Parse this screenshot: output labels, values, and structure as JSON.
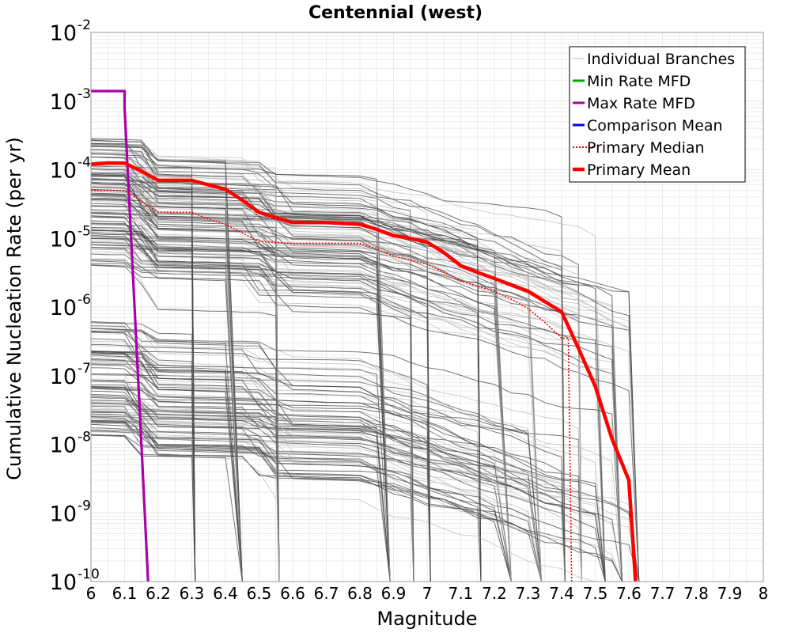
{
  "chart_data": {
    "type": "line",
    "title": "Centennial (west)",
    "xlabel": "Magnitude",
    "ylabel": "Cumulative Nucleation Rate (per yr)",
    "xlim": [
      6.0,
      8.0
    ],
    "ylim": [
      1e-10,
      0.01
    ],
    "yscale": "log",
    "grid": true,
    "legend_position": "top-right",
    "x_ticks": [
      "6",
      "6.1",
      "6.2",
      "6.3",
      "6.4",
      "6.5",
      "6.6",
      "6.7",
      "6.8",
      "6.9",
      "7",
      "7.1",
      "7.2",
      "7.3",
      "7.4",
      "7.5",
      "7.6",
      "7.7",
      "7.8",
      "7.9",
      "8"
    ],
    "y_ticks": [
      {
        "base": "10",
        "exp": "-2",
        "value": 0.01
      },
      {
        "base": "10",
        "exp": "-3",
        "value": 0.001
      },
      {
        "base": "10",
        "exp": "-4",
        "value": 0.0001
      },
      {
        "base": "10",
        "exp": "-5",
        "value": 1e-05
      },
      {
        "base": "10",
        "exp": "-6",
        "value": 1e-06
      },
      {
        "base": "10",
        "exp": "-7",
        "value": 1e-07
      },
      {
        "base": "10",
        "exp": "-8",
        "value": 1e-08
      },
      {
        "base": "10",
        "exp": "-9",
        "value": 1e-09
      },
      {
        "base": "10",
        "exp": "-10",
        "value": 1e-10
      }
    ],
    "series": [
      {
        "name": "Primary Mean",
        "color": "#ff0000",
        "style": "solid",
        "x": [
          6.0,
          6.05,
          6.1,
          6.15,
          6.2,
          6.25,
          6.3,
          6.35,
          6.4,
          6.45,
          6.5,
          6.55,
          6.6,
          6.65,
          6.7,
          6.75,
          6.8,
          6.85,
          6.9,
          6.95,
          7.0,
          7.05,
          7.1,
          7.15,
          7.2,
          7.25,
          7.3,
          7.35,
          7.4,
          7.45,
          7.5,
          7.55,
          7.6,
          7.62
        ],
        "y": [
          0.00012,
          0.000125,
          0.000125,
          9.5e-05,
          7e-05,
          7e-05,
          7e-05,
          6e-05,
          5.2e-05,
          3.6e-05,
          2.4e-05,
          2e-05,
          1.7e-05,
          1.7e-05,
          1.7e-05,
          1.65e-05,
          1.6e-05,
          1.35e-05,
          1.1e-05,
          1e-05,
          8.8e-06,
          6.2e-06,
          4e-06,
          3.2e-06,
          2.6e-06,
          2.1e-06,
          1.7e-06,
          1.2e-06,
          8.5e-07,
          2.5e-07,
          7e-08,
          1.2e-08,
          3e-09,
          1e-10
        ]
      },
      {
        "name": "Primary Median",
        "color": "#ff0000",
        "style": "dotted",
        "x": [
          6.0,
          6.05,
          6.1,
          6.15,
          6.2,
          6.25,
          6.3,
          6.35,
          6.4,
          6.45,
          6.5,
          6.55,
          6.6,
          6.65,
          6.7,
          6.75,
          6.8,
          6.85,
          6.9,
          6.95,
          7.0,
          7.05,
          7.1,
          7.15,
          7.2,
          7.25,
          7.3,
          7.35,
          7.4,
          7.42,
          7.43
        ],
        "y": [
          5e-05,
          5e-05,
          5e-05,
          3.5e-05,
          2.4e-05,
          2.4e-05,
          2.4e-05,
          1.9e-05,
          1.6e-05,
          1.2e-05,
          9e-06,
          8.7e-06,
          8.5e-06,
          8.5e-06,
          8.5e-06,
          8.5e-06,
          8.5e-06,
          7e-06,
          5.5e-06,
          4.8e-06,
          4.2e-06,
          3.2e-06,
          2.4e-06,
          2e-06,
          1.7e-06,
          1.3e-06,
          9.5e-07,
          6e-07,
          3.5e-07,
          3.5e-07,
          1e-10
        ]
      },
      {
        "name": "Max Rate MFD",
        "color": "#aa00aa",
        "style": "solid",
        "x": [
          6.0,
          6.1,
          6.1,
          6.15,
          6.17
        ],
        "y": [
          0.0014,
          0.0014,
          0.0008,
          1e-08,
          1e-10
        ]
      },
      {
        "name": "Min Rate MFD",
        "color": "#00aa00",
        "style": "solid",
        "x": [],
        "y": []
      },
      {
        "name": "Comparison Mean",
        "color": "#0000ff",
        "style": "solid",
        "x": [],
        "y": []
      },
      {
        "name": "Individual Branches",
        "color": "#c8c8c8",
        "style": "solid",
        "x": [],
        "y": []
      }
    ],
    "legend": [
      {
        "label": "Individual Branches",
        "color": "#bbbbbb",
        "style": "thin"
      },
      {
        "label": "Min Rate MFD",
        "color": "#00aa00",
        "style": "solid"
      },
      {
        "label": "Max Rate MFD",
        "color": "#aa00aa",
        "style": "solid"
      },
      {
        "label": "Comparison Mean",
        "color": "#0000ff",
        "style": "solid"
      },
      {
        "label": " Primary Median",
        "color": "#ff0000",
        "style": "dotted"
      },
      {
        "label": "Primary Mean",
        "color": "#ff0000",
        "style": "thick"
      }
    ],
    "colors": {
      "branches": "#4a4a4a",
      "branches_faint": "#b4b4b4",
      "grid": "#e6e6e6",
      "frame": "#999999"
    }
  }
}
